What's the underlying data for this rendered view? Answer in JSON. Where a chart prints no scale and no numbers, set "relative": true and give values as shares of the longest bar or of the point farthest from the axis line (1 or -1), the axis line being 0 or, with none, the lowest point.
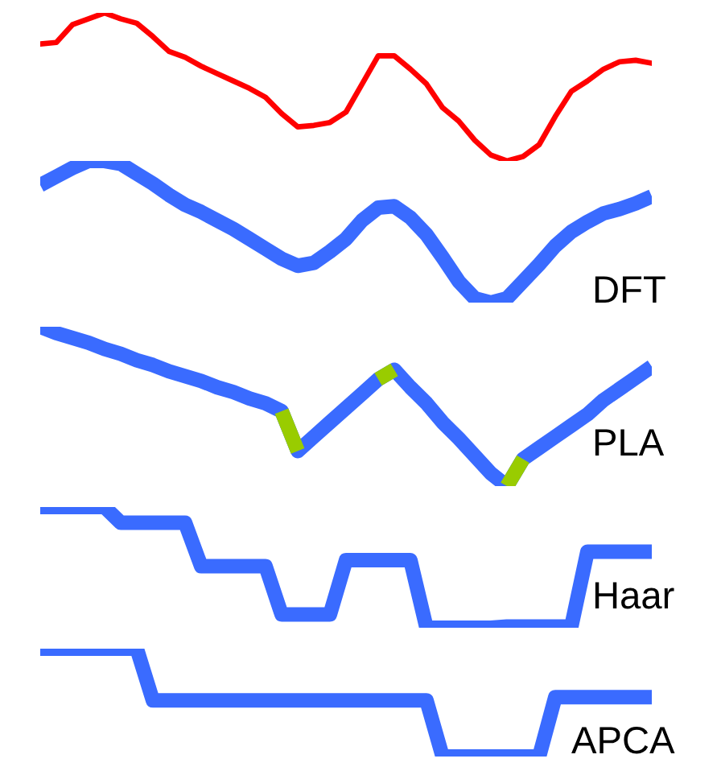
{
  "chart_data": [
    {
      "type": "line",
      "relative": true,
      "categories": [
        null,
        null,
        null,
        null,
        null,
        null,
        null,
        null,
        null,
        null,
        null,
        null,
        null,
        null,
        null,
        null,
        null,
        null,
        null,
        null,
        null,
        null,
        null,
        null,
        null,
        null,
        null,
        null,
        null,
        null,
        null,
        null,
        null,
        null,
        null,
        null,
        null,
        null,
        null
      ],
      "series": [
        {
          "color": "#ff0000",
          "values": [
            0.79,
            0.8,
            0.92,
            0.96,
            1.0,
            0.96,
            0.93,
            0.84,
            0.74,
            0.7,
            0.64,
            0.59,
            0.54,
            0.49,
            0.43,
            0.32,
            0.23,
            0.24,
            0.26,
            0.33,
            0.52,
            0.71,
            0.71,
            0.62,
            0.52,
            0.36,
            0.27,
            0.14,
            0.04,
            0,
            0.03,
            0.11,
            0.3,
            0.47,
            0.54,
            0.62,
            0.67,
            0.68,
            0.66
          ]
        }
      ]
    },
    {
      "type": "line",
      "relative": true,
      "title": "DFT",
      "categories": [
        null,
        null,
        null,
        null,
        null,
        null,
        null,
        null,
        null,
        null,
        null,
        null,
        null,
        null,
        null,
        null,
        null,
        null,
        null,
        null,
        null,
        null,
        null,
        null,
        null,
        null,
        null,
        null,
        null,
        null,
        null,
        null,
        null,
        null,
        null,
        null,
        null,
        null,
        null
      ],
      "series": [
        {
          "color": "#3a6bff",
          "values": [
            0.83,
            0.89,
            0.95,
            1.0,
            1.0,
            0.98,
            0.91,
            0.84,
            0.76,
            0.69,
            0.64,
            0.58,
            0.52,
            0.45,
            0.38,
            0.31,
            0.26,
            0.28,
            0.36,
            0.45,
            0.58,
            0.67,
            0.68,
            0.6,
            0.48,
            0.32,
            0.15,
            0.03,
            0,
            0.03,
            0.15,
            0.27,
            0.4,
            0.5,
            0.57,
            0.63,
            0.66,
            0.7,
            0.75
          ]
        }
      ]
    },
    {
      "type": "line",
      "relative": true,
      "title": "PLA",
      "categories": [
        null,
        null,
        null,
        null,
        null,
        null,
        null,
        null,
        null,
        null,
        null,
        null,
        null,
        null,
        null,
        null,
        null,
        null,
        null,
        null,
        null,
        null,
        null,
        null,
        null,
        null,
        null,
        null,
        null,
        null,
        null,
        null,
        null,
        null,
        null,
        null,
        null,
        null,
        null
      ],
      "series": [
        {
          "color": "#3a6bff",
          "values": [
            1.0,
            0.96,
            0.93,
            0.9,
            0.86,
            0.83,
            0.79,
            0.76,
            0.72,
            0.69,
            0.66,
            0.62,
            0.59,
            0.55,
            0.52,
            0.47,
            0.22,
            0.31,
            0.4,
            0.49,
            0.58,
            0.67,
            0.73,
            0.62,
            0.52,
            0.4,
            0.3,
            0.19,
            0.08,
            0,
            0.17,
            0.24,
            0.31,
            0.38,
            0.45,
            0.54,
            0.61,
            0.68,
            0.75
          ]
        },
        {
          "color": "#99cc00",
          "values": [
            null,
            null,
            null,
            null,
            null,
            null,
            null,
            null,
            null,
            null,
            null,
            null,
            null,
            null,
            null,
            0.47,
            0.22,
            null,
            null,
            null,
            null,
            0.67,
            0.73,
            null,
            null,
            null,
            null,
            null,
            null,
            0,
            0.17,
            null,
            null,
            null,
            null,
            null,
            null,
            null,
            null
          ]
        }
      ]
    },
    {
      "type": "line",
      "relative": true,
      "title": "Haar",
      "categories": [
        null,
        null,
        null,
        null,
        null,
        null,
        null,
        null,
        null,
        null,
        null,
        null,
        null,
        null,
        null,
        null,
        null,
        null,
        null,
        null,
        null,
        null,
        null,
        null,
        null,
        null,
        null,
        null,
        null,
        null,
        null,
        null,
        null,
        null,
        null,
        null,
        null,
        null,
        null
      ],
      "series": [
        {
          "color": "#3a6bff",
          "values": [
            1,
            1,
            1,
            1,
            1,
            0.87,
            0.87,
            0.87,
            0.87,
            0.87,
            0.51,
            0.51,
            0.51,
            0.51,
            0.51,
            0.11,
            0.11,
            0.11,
            0.11,
            0.56,
            0.56,
            0.56,
            0.56,
            0.56,
            0,
            0,
            0,
            0,
            0,
            0.01,
            0.01,
            0.01,
            0.01,
            0.01,
            0.63,
            0.63,
            0.63,
            0.63,
            0.63
          ]
        }
      ]
    },
    {
      "type": "line",
      "relative": true,
      "title": "APCA",
      "categories": [
        null,
        null,
        null,
        null,
        null,
        null,
        null,
        null,
        null,
        null,
        null,
        null,
        null,
        null,
        null,
        null,
        null,
        null,
        null,
        null,
        null,
        null,
        null,
        null,
        null,
        null,
        null,
        null,
        null,
        null,
        null,
        null,
        null,
        null,
        null,
        null,
        null,
        null,
        null
      ],
      "series": [
        {
          "color": "#3a6bff",
          "values": [
            1,
            1,
            1,
            1,
            1,
            1,
            1,
            0.52,
            0.52,
            0.52,
            0.52,
            0.52,
            0.52,
            0.52,
            0.52,
            0.52,
            0.52,
            0.52,
            0.52,
            0.52,
            0.52,
            0.52,
            0.52,
            0.52,
            0.52,
            0,
            0,
            0,
            0,
            0,
            0,
            0,
            0.55,
            0.55,
            0.55,
            0.55,
            0.55,
            0.55,
            0.55
          ]
        }
      ]
    }
  ]
}
